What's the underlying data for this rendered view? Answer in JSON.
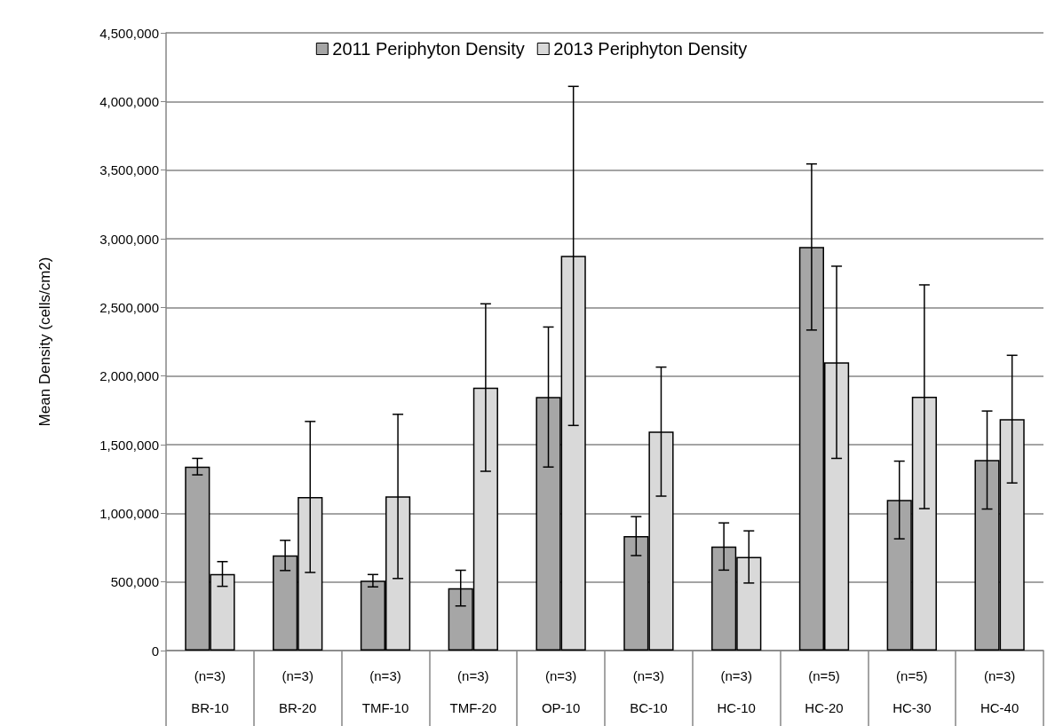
{
  "chart_data": {
    "type": "bar",
    "ylabel": "Mean Density (cells/cm2)",
    "categories": [
      "(n=3)\nBR-10",
      "(n=3)\nBR-20",
      "(n=3)\nTMF-10",
      "(n=3)\nTMF-20",
      "(n=3)\nOP-10",
      "(n=3)\nBC-10",
      "(n=3)\nHC-10",
      "(n=5)\nHC-20",
      "(n=5)\nHC-30",
      "(n=3)\nHC-40"
    ],
    "series": [
      {
        "name": "2011 Periphyton Density",
        "color": "#a6a6a6",
        "values": [
          1340000,
          693000,
          509000,
          455000,
          1847000,
          834000,
          758000,
          2940000,
          1097000,
          1388000
        ],
        "errors": [
          60000,
          110000,
          45000,
          130000,
          510000,
          142000,
          172000,
          605000,
          283000,
          357000
        ]
      },
      {
        "name": "2013 Periphyton Density",
        "color": "#d9d9d9",
        "values": [
          558000,
          1119000,
          1123000,
          1916000,
          2875000,
          1595000,
          682000,
          2100000,
          1849000,
          1686000
        ],
        "errors": [
          90000,
          550000,
          598000,
          610000,
          1235000,
          470000,
          190000,
          700000,
          815000,
          465000
        ]
      }
    ],
    "ylim": [
      0,
      4500000
    ],
    "yticks": [
      0,
      {
        "value": 500000,
        "label": "500,000"
      },
      {
        "value": 1000000,
        "label": "1,000,000"
      },
      {
        "value": 1500000,
        "label": "1,500,000"
      },
      {
        "value": 2000000,
        "label": "2,000,000"
      },
      {
        "value": 2500000,
        "label": "2,500,000"
      },
      {
        "value": 3000000,
        "label": "3,000,000"
      },
      {
        "value": 3500000,
        "label": "3,500,000"
      },
      {
        "value": 4000000,
        "label": "4,000,000"
      },
      {
        "value": 4500000,
        "label": "4,500,000"
      }
    ],
    "grid": "y",
    "legend": "top"
  }
}
